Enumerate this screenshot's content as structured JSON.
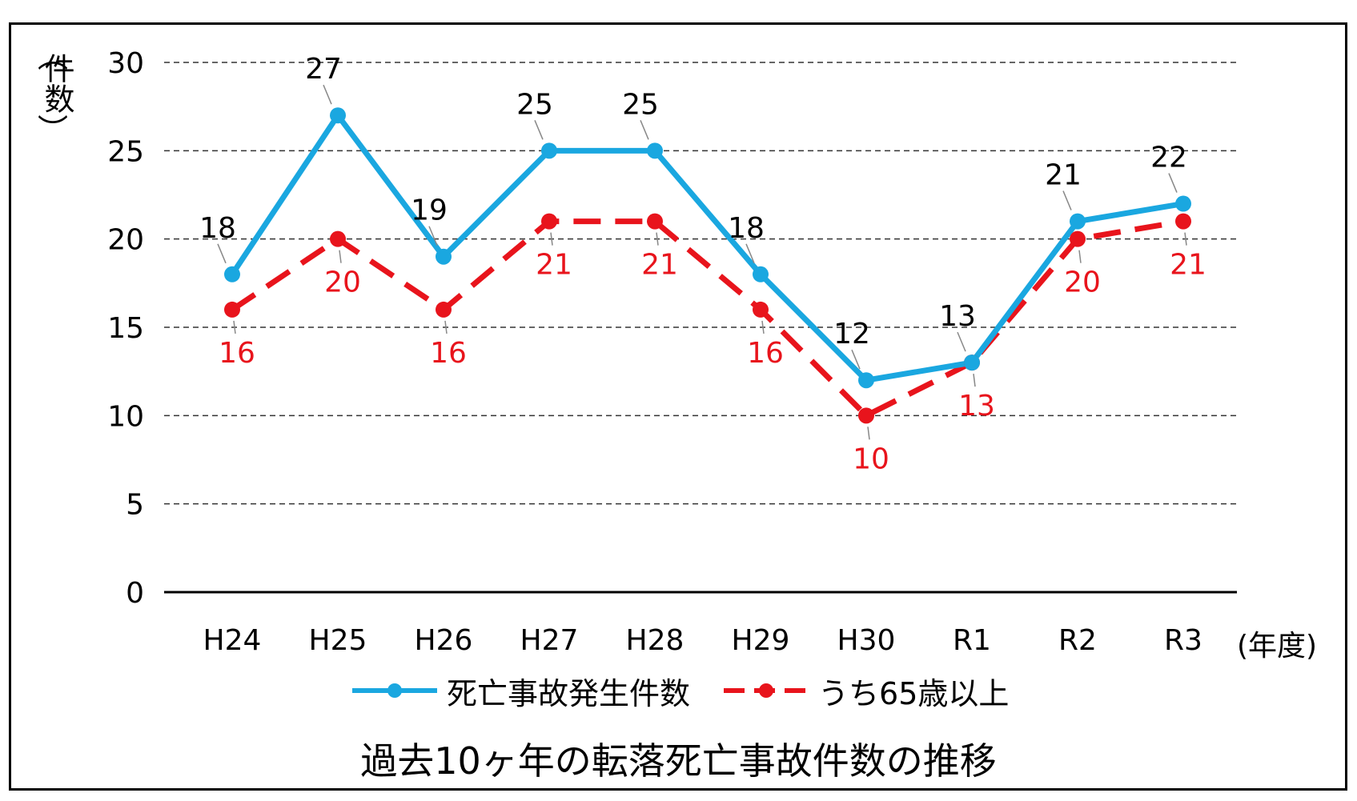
{
  "chart_data": {
    "type": "line",
    "title": "過去10ヶ年の転落死亡事故件数の推移",
    "ylabel": "(件数)",
    "xunit": "(年度)",
    "categories": [
      "H24",
      "H25",
      "H26",
      "H27",
      "H28",
      "H29",
      "H30",
      "R1",
      "R2",
      "R3"
    ],
    "ylim": [
      0,
      30
    ],
    "yticks": [
      0,
      5,
      10,
      15,
      20,
      25,
      30
    ],
    "grid": true,
    "legend_position": "bottom",
    "series": [
      {
        "name": "死亡事故発生件数",
        "color": "#1aa7e0",
        "style": "solid",
        "values": [
          18,
          27,
          19,
          25,
          25,
          18,
          12,
          13,
          21,
          22
        ]
      },
      {
        "name": "うち65歳以上",
        "color": "#e8141c",
        "style": "dashed",
        "values": [
          16,
          20,
          16,
          21,
          21,
          16,
          10,
          13,
          20,
          21
        ]
      }
    ]
  }
}
